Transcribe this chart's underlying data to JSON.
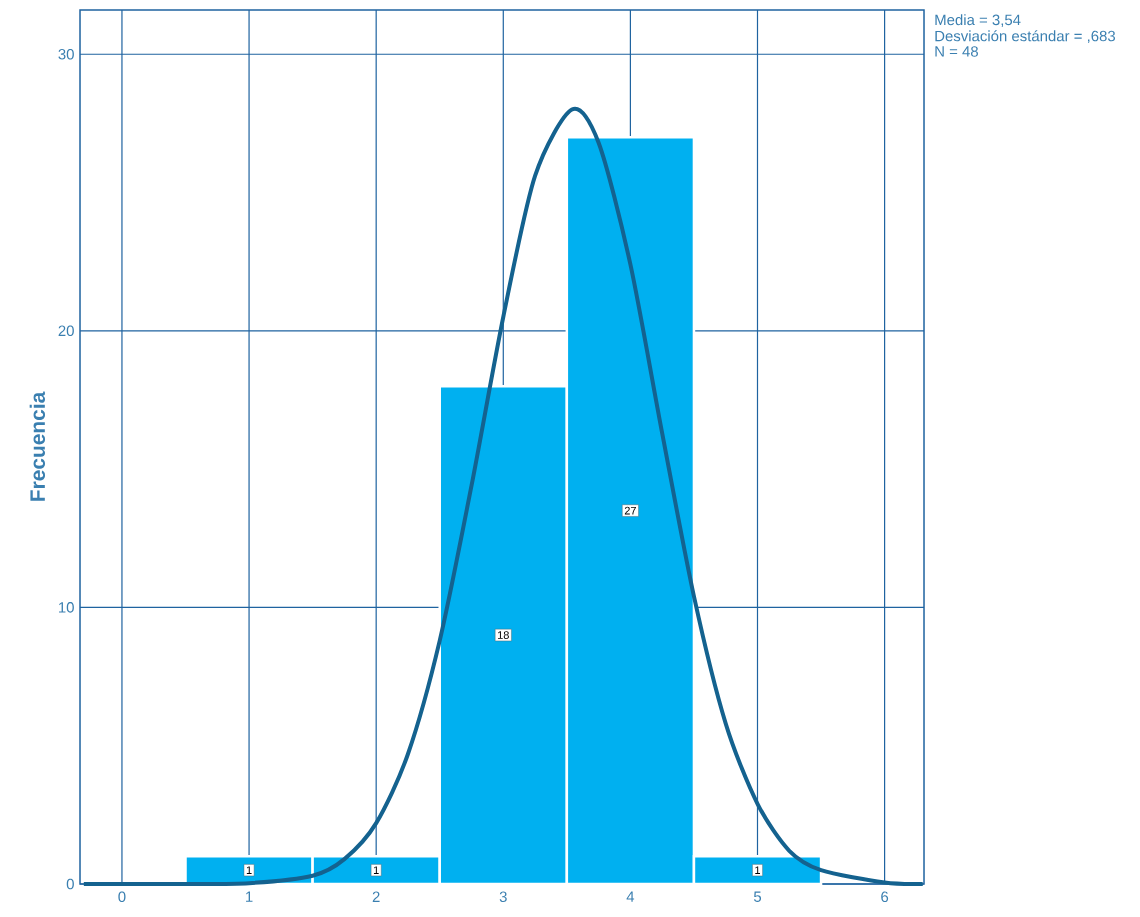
{
  "chart_data": {
    "type": "histogram",
    "ylabel": "Frecuencia",
    "bins": [
      0.5,
      1.5,
      2.5,
      3.5,
      4.5,
      5.5
    ],
    "values": [
      1,
      1,
      18,
      27,
      1
    ],
    "color": "#00b0f0",
    "value_labels": [
      "1",
      "1",
      "18",
      "27",
      "1"
    ],
    "series": [
      {
        "type": "line",
        "color": "#14628f",
        "x": [
          -0.3,
          0,
          0.5,
          1,
          1.5,
          1.75,
          2,
          2.25,
          2.5,
          2.75,
          3,
          3.25,
          3.54,
          3.75,
          4,
          4.25,
          4.5,
          4.75,
          5,
          5.25,
          5.5,
          6,
          6.3
        ],
        "values": [
          0,
          0,
          0,
          0.03,
          0.3,
          0.9,
          2.2,
          4.7,
          8.8,
          14.4,
          20.5,
          25.6,
          28,
          26.8,
          22.4,
          16.3,
          10.4,
          5.8,
          2.9,
          1.2,
          0.5,
          0.05,
          0
        ]
      }
    ],
    "xlim": [
      -0.33,
      6.31
    ],
    "ylim": [
      0,
      31.6
    ],
    "xticks": [
      0,
      1,
      2,
      3,
      4,
      5,
      6
    ],
    "yticks": [
      0,
      10,
      20,
      30
    ],
    "grid": true,
    "annotations": [
      "Media = 3,54",
      "Desviación estándar = ,683",
      "N = 48"
    ]
  }
}
